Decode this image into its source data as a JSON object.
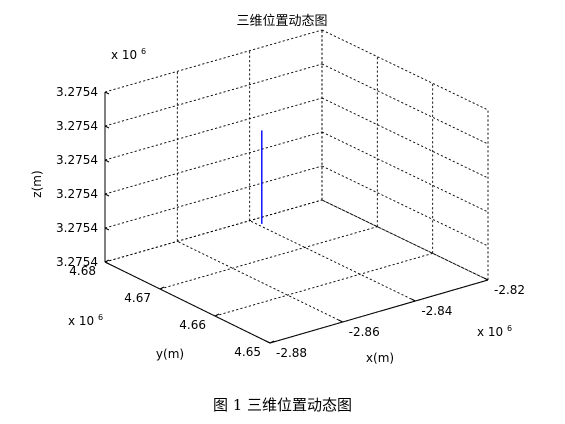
{
  "chart_data": {
    "type": "line",
    "title": "三维位置动态图",
    "xlabel": "x(m)",
    "ylabel": "y(m)",
    "zlabel": "z(m)",
    "x_ticks": [
      "-2.88",
      "-2.86",
      "-2.84",
      "-2.82"
    ],
    "y_ticks": [
      "4.65",
      "4.66",
      "4.67",
      "4.68"
    ],
    "z_ticks": [
      "3.2754",
      "3.2754",
      "3.2754",
      "3.2754",
      "3.2754",
      "3.2754"
    ],
    "x_multiplier": "x 10",
    "y_multiplier": "x 10",
    "z_multiplier": "x 10",
    "exponent": "6",
    "xlim": [
      -2.88,
      -2.82
    ],
    "ylim": [
      4.65,
      4.68
    ],
    "grid": true,
    "series": [
      {
        "color": "#0000ff",
        "x": [
          -2.855,
          -2.855
        ],
        "y": [
          4.668,
          4.668
        ],
        "z": [
          0.26,
          0.81
        ]
      }
    ]
  },
  "caption": "图 1  三维位置动态图"
}
